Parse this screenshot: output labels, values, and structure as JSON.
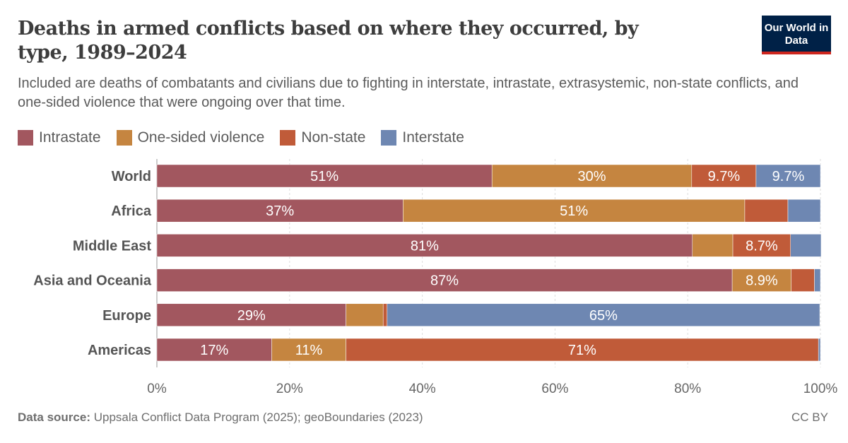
{
  "title": "Deaths in armed conflicts based on where they occurred, by type, 1989–2024",
  "subtitle": "Included are deaths of combatants and civilians due to fighting in interstate, intrastate, extrasystemic, non-state conflicts, and one-sided violence that were ongoing over that time.",
  "logo": "Our World in Data",
  "footer": {
    "source_label": "Data source:",
    "source": "Uppsala Conflict Data Program (2025); geoBoundaries (2023)",
    "license": "CC BY"
  },
  "chart_data": {
    "type": "bar",
    "orientation": "horizontal",
    "stacked": true,
    "categories": [
      "World",
      "Africa",
      "Middle East",
      "Asia and Oceania",
      "Europe",
      "Americas"
    ],
    "series": [
      {
        "name": "Intrastate",
        "color": "#a2575f",
        "values": [
          50.5,
          37.1,
          80.7,
          86.7,
          28.5,
          17.3
        ],
        "labels": [
          "51%",
          "37%",
          "81%",
          "87%",
          "29%",
          "17%"
        ]
      },
      {
        "name": "One-sided violence",
        "color": "#c58540",
        "values": [
          30.1,
          51.5,
          6.1,
          8.9,
          5.6,
          11.2
        ],
        "labels": [
          "30%",
          "51%",
          "",
          "8.9%",
          "",
          "11%"
        ]
      },
      {
        "name": "Non-state",
        "color": "#c05b39",
        "values": [
          9.7,
          6.5,
          8.7,
          3.5,
          0.6,
          71.2
        ],
        "labels": [
          "9.7%",
          "",
          "8.7%",
          "",
          "",
          "71%"
        ]
      },
      {
        "name": "Interstate",
        "color": "#6e87b2",
        "values": [
          9.7,
          4.9,
          4.6,
          0.9,
          65.2,
          0.3
        ],
        "labels": [
          "9.7%",
          "",
          "",
          "",
          "65%",
          ""
        ]
      }
    ],
    "xlim": [
      0,
      100
    ],
    "xticks": [
      "0%",
      "20%",
      "40%",
      "60%",
      "80%",
      "100%"
    ],
    "grid": true,
    "legend_position": "top-left"
  }
}
